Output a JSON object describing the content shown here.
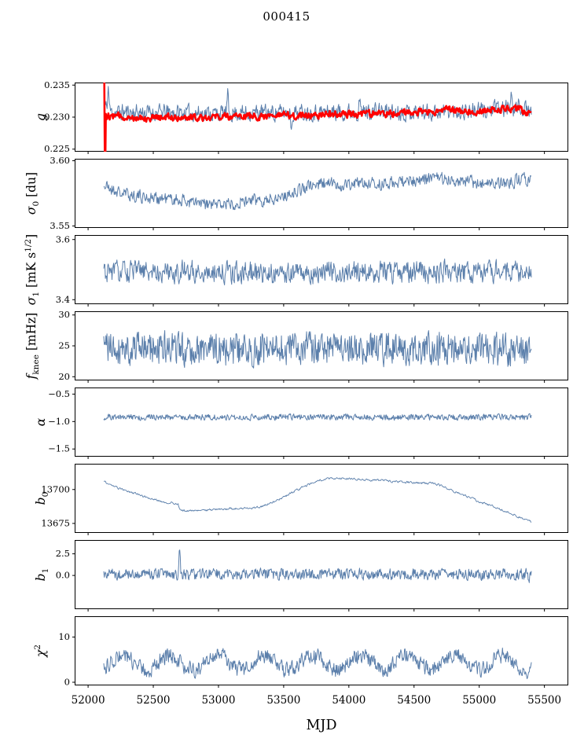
{
  "title": "000415",
  "colors": {
    "line": "#5b7fab",
    "overlay": "#ff0000",
    "axis": "#000000",
    "text": "#000000"
  },
  "chart_data": {
    "type": "line",
    "title": "000415",
    "xlabel": "MJD",
    "x_range": [
      51900,
      55680
    ],
    "x_ticks": [
      {
        "v": 52000,
        "l": "52000"
      },
      {
        "v": 52500,
        "l": "52500"
      },
      {
        "v": 53000,
        "l": "53000"
      },
      {
        "v": 53500,
        "l": "53500"
      },
      {
        "v": 54000,
        "l": "54000"
      },
      {
        "v": 54500,
        "l": "54500"
      },
      {
        "v": 55000,
        "l": "55000"
      },
      {
        "v": 55500,
        "l": "55500"
      }
    ],
    "panels": [
      {
        "id": "g",
        "label_parts": [
          {
            "t": "g",
            "i": true
          }
        ],
        "y_range": [
          0.2246,
          0.2354
        ],
        "y_ticks": [
          {
            "v": 0.235,
            "l": "0.235"
          },
          {
            "v": 0.23,
            "l": "0.230"
          },
          {
            "v": 0.225,
            "l": "0.225"
          }
        ],
        "series": [
          {
            "role": "line",
            "lw": 1,
            "seed": 11,
            "n": 760,
            "x0": 52120,
            "x1": 55400,
            "kp": [
              [
                52120,
                0.2318
              ],
              [
                52180,
                0.2308
              ],
              [
                52600,
                0.2307
              ],
              [
                53000,
                0.2306
              ],
              [
                53400,
                0.2307
              ],
              [
                53800,
                0.2308
              ],
              [
                54200,
                0.2309
              ],
              [
                54600,
                0.2308
              ],
              [
                55000,
                0.231
              ],
              [
                55200,
                0.2314
              ],
              [
                55300,
                0.2316
              ],
              [
                55400,
                0.2306
              ]
            ],
            "noise": {
              "amp": 0.0012,
              "rho": 0.3
            },
            "spikes": [
              {
                "x": 52155,
                "h": 0.0035,
                "w": 12
              },
              {
                "x": 53070,
                "h": 0.003,
                "w": 10
              },
              {
                "x": 53560,
                "h": -0.0028,
                "w": 10
              },
              {
                "x": 54080,
                "h": 0.0026,
                "w": 10
              },
              {
                "x": 55250,
                "h": 0.0022,
                "w": 12
              }
            ]
          },
          {
            "role": "overlay",
            "lw": 2.6,
            "seed": 12,
            "n": 640,
            "x0": 52140,
            "x1": 55400,
            "pre": [
              [
                52124,
                0.2362
              ],
              [
                52130,
                0.219
              ],
              [
                52136,
                0.2305
              ]
            ],
            "kp": [
              [
                52140,
                0.2302
              ],
              [
                52500,
                0.2299
              ],
              [
                53000,
                0.2301
              ],
              [
                53500,
                0.2302
              ],
              [
                54000,
                0.2305
              ],
              [
                54400,
                0.2306
              ],
              [
                54800,
                0.2311
              ],
              [
                55000,
                0.2309
              ],
              [
                55150,
                0.2313
              ],
              [
                55300,
                0.2313
              ],
              [
                55400,
                0.2304
              ]
            ],
            "noise": {
              "amp": 0.0005,
              "rho": 0.4
            }
          }
        ]
      },
      {
        "id": "sigma0",
        "label_parts": [
          {
            "t": "σ",
            "i": true
          },
          {
            "t": "0",
            "sub": true
          },
          {
            "t": " [du]"
          }
        ],
        "y_range": [
          3.5485,
          3.6015
        ],
        "y_ticks": [
          {
            "v": 3.6,
            "l": "3.60"
          },
          {
            "v": 3.55,
            "l": "3.55"
          }
        ],
        "series": [
          {
            "role": "line",
            "lw": 1,
            "seed": 21,
            "n": 780,
            "x0": 52120,
            "x1": 55400,
            "kp": [
              [
                52120,
                3.581
              ],
              [
                52250,
                3.575
              ],
              [
                52450,
                3.572
              ],
              [
                52700,
                3.57
              ],
              [
                52900,
                3.566
              ],
              [
                53050,
                3.567
              ],
              [
                53200,
                3.569
              ],
              [
                53350,
                3.57
              ],
              [
                53500,
                3.573
              ],
              [
                53650,
                3.579
              ],
              [
                53800,
                3.583
              ],
              [
                53950,
                3.581
              ],
              [
                54100,
                3.583
              ],
              [
                54250,
                3.582
              ],
              [
                54400,
                3.584
              ],
              [
                54550,
                3.585
              ],
              [
                54700,
                3.587
              ],
              [
                54850,
                3.585
              ],
              [
                55000,
                3.583
              ],
              [
                55150,
                3.582
              ],
              [
                55300,
                3.585
              ],
              [
                55400,
                3.586
              ]
            ],
            "noise": {
              "amp": 0.0045,
              "rho": 0.3
            }
          }
        ]
      },
      {
        "id": "sigma1",
        "label_parts": [
          {
            "t": "σ",
            "i": true
          },
          {
            "t": "1",
            "sub": true
          },
          {
            "t": " [mK s"
          },
          {
            "t": "1/2",
            "sup": true
          },
          {
            "t": "]"
          }
        ],
        "y_range": [
          3.385,
          3.615
        ],
        "y_ticks": [
          {
            "v": 3.6,
            "l": "3.6"
          },
          {
            "v": 3.4,
            "l": "3.4"
          }
        ],
        "series": [
          {
            "role": "line",
            "lw": 1,
            "seed": 31,
            "n": 780,
            "x0": 52120,
            "x1": 55400,
            "kp": [
              [
                52120,
                3.492
              ],
              [
                52800,
                3.494
              ],
              [
                53500,
                3.49
              ],
              [
                54300,
                3.492
              ],
              [
                55400,
                3.49
              ]
            ],
            "noise": {
              "amp": 0.033,
              "rho": 0.33
            }
          }
        ]
      },
      {
        "id": "fknee",
        "label_parts": [
          {
            "t": "f",
            "i": true
          },
          {
            "t": "knee",
            "sub": true
          },
          {
            "t": " [mHz]"
          }
        ],
        "y_range": [
          19.4,
          30.6
        ],
        "y_ticks": [
          {
            "v": 30,
            "l": "30"
          },
          {
            "v": 25,
            "l": "25"
          },
          {
            "v": 20,
            "l": "20"
          }
        ],
        "series": [
          {
            "role": "line",
            "lw": 1,
            "seed": 41,
            "n": 800,
            "x0": 52120,
            "x1": 55400,
            "kp": [
              [
                52120,
                24.8
              ],
              [
                53000,
                24.4
              ],
              [
                54000,
                24.6
              ],
              [
                55400,
                24.2
              ]
            ],
            "noise": {
              "amp": 2.5,
              "rho": 0.22
            }
          }
        ]
      },
      {
        "id": "alpha",
        "label_parts": [
          {
            "t": "α",
            "i": true
          }
        ],
        "y_range": [
          -1.64,
          -0.38
        ],
        "y_ticks": [
          {
            "v": -0.5,
            "l": "−0.5"
          },
          {
            "v": -1.0,
            "l": "−1.0"
          },
          {
            "v": -1.5,
            "l": "−1.5"
          }
        ],
        "series": [
          {
            "role": "line",
            "lw": 1,
            "seed": 51,
            "n": 800,
            "x0": 52120,
            "x1": 55400,
            "kp": [
              [
                52120,
                -0.92
              ],
              [
                55400,
                -0.92
              ]
            ],
            "noise": {
              "amp": 0.05,
              "rho": 0.25
            }
          }
        ]
      },
      {
        "id": "b0",
        "label_parts": [
          {
            "t": "b",
            "i": true
          },
          {
            "t": "0",
            "sub": true
          }
        ],
        "y_range": [
          13668,
          13719
        ],
        "y_ticks": [
          {
            "v": 13700,
            "l": "13700"
          },
          {
            "v": 13675,
            "l": "13675"
          }
        ],
        "series": [
          {
            "role": "line",
            "lw": 0.9,
            "seed": 61,
            "n": 720,
            "x0": 52120,
            "x1": 55400,
            "kp": [
              [
                52120,
                13706
              ],
              [
                52200,
                13702
              ],
              [
                52300,
                13699
              ],
              [
                52450,
                13694
              ],
              [
                52600,
                13690.5
              ],
              [
                52690,
                13689.5
              ],
              [
                52705,
                13684.5
              ],
              [
                52800,
                13684
              ],
              [
                52950,
                13685
              ],
              [
                53100,
                13686
              ],
              [
                53250,
                13686
              ],
              [
                53350,
                13688
              ],
              [
                53450,
                13692
              ],
              [
                53550,
                13697
              ],
              [
                53650,
                13702
              ],
              [
                53750,
                13706
              ],
              [
                53850,
                13708
              ],
              [
                53950,
                13708.5
              ],
              [
                54050,
                13707.5
              ],
              [
                54200,
                13707
              ],
              [
                54350,
                13706
              ],
              [
                54500,
                13705
              ],
              [
                54650,
                13704.5
              ],
              [
                54700,
                13703
              ],
              [
                54800,
                13699
              ],
              [
                54900,
                13695
              ],
              [
                55000,
                13691
              ],
              [
                55100,
                13688
              ],
              [
                55200,
                13684
              ],
              [
                55300,
                13680
              ],
              [
                55400,
                13676
              ]
            ],
            "noise": {
              "amp": 0.7,
              "rho": 0.5
            }
          }
        ]
      },
      {
        "id": "b1",
        "label_parts": [
          {
            "t": "b",
            "i": true
          },
          {
            "t": "1",
            "sub": true
          }
        ],
        "y_range": [
          -3.9,
          4.1
        ],
        "y_ticks": [
          {
            "v": 2.5,
            "l": "2.5"
          },
          {
            "v": 0.0,
            "l": "0.0"
          }
        ],
        "series": [
          {
            "role": "line",
            "lw": 1,
            "seed": 71,
            "n": 800,
            "x0": 52120,
            "x1": 55400,
            "kp": [
              [
                52120,
                0.15
              ],
              [
                55400,
                0.15
              ]
            ],
            "noise": {
              "amp": 0.62,
              "rho": 0.2
            },
            "spikes": [
              {
                "x": 52702,
                "h": 3.3,
                "w": 9
              },
              {
                "x": 55378,
                "h": -1.7,
                "w": 9
              }
            ]
          }
        ]
      },
      {
        "id": "chi2",
        "label_parts": [
          {
            "t": "χ",
            "i": true
          },
          {
            "t": "2",
            "sup": true
          }
        ],
        "y_range": [
          -0.7,
          14.6
        ],
        "y_ticks": [
          {
            "v": 10,
            "l": "10"
          },
          {
            "v": 0,
            "l": "0"
          }
        ],
        "series": [
          {
            "role": "line",
            "lw": 1,
            "seed": 81,
            "n": 800,
            "x0": 52120,
            "x1": 55400,
            "kp": [
              [
                52120,
                4.3
              ],
              [
                55400,
                4.4
              ]
            ],
            "noise": {
              "amp": 1.6,
              "rho": 0.3
            },
            "osc": {
              "period": 365,
              "amp": 1.6,
              "peak_x": 52260
            },
            "min": 0.3
          }
        ]
      }
    ]
  }
}
